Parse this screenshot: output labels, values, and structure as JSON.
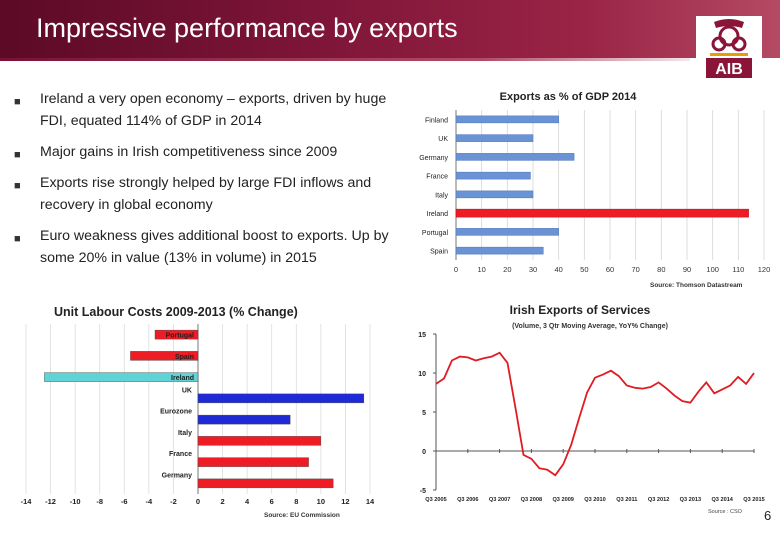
{
  "slide": {
    "title": "Impressive performance by exports",
    "page_number": "6",
    "logo_text": "AIB",
    "bullets": [
      "Ireland a very open economy – exports, driven by huge FDI, equated 114% of GDP in 2014",
      "Major gains in Irish competitiveness since 2009",
      "Exports rise strongly helped by large FDI inflows and recovery in global economy",
      "Euro weakness gives additional boost to exports. Up by some 20% in value (13% in volume) in 2015"
    ]
  },
  "colors": {
    "header": "#7d1538",
    "bar_blue": "#6a93d6",
    "bar_red": "#ee1c25",
    "ulc_blue": "#1f2ad6",
    "ulc_cyan": "#5fd3d6",
    "line_red": "#e11b22"
  },
  "chart_data": [
    {
      "type": "bar",
      "orientation": "horizontal",
      "title": "Exports as % of GDP 2014",
      "categories": [
        "Finland",
        "UK",
        "Germany",
        "France",
        "Italy",
        "Ireland",
        "Portugal",
        "Spain"
      ],
      "values": [
        40,
        30,
        46,
        29,
        30,
        114,
        40,
        34
      ],
      "highlight": "Ireland",
      "xlim": [
        0,
        120
      ],
      "xticks": [
        0,
        10,
        20,
        30,
        40,
        50,
        60,
        70,
        80,
        90,
        100,
        110,
        120
      ],
      "source": "Source: Thomson Datastream",
      "grid": true
    },
    {
      "type": "bar",
      "orientation": "horizontal",
      "title": "Unit Labour Costs 2009-2013 (% Change)",
      "categories": [
        "Portugal",
        "Spain",
        "Ireland",
        "UK",
        "Eurozone",
        "Italy",
        "France",
        "Germany"
      ],
      "values": [
        -3.5,
        -5.5,
        -12.5,
        13.5,
        7.5,
        10,
        9,
        11
      ],
      "colors": [
        "red",
        "red",
        "cyan",
        "blue",
        "blue",
        "red",
        "red",
        "red"
      ],
      "xlim": [
        -14,
        14
      ],
      "xticks": [
        -14,
        -12,
        -10,
        -8,
        -6,
        -4,
        -2,
        0,
        2,
        4,
        6,
        8,
        10,
        12,
        14
      ],
      "source": "Source: EU Commission",
      "grid": true
    },
    {
      "type": "line",
      "title": "Irish Exports of Services",
      "subtitle": "(Volume, 3 Qtr Moving Average, YoY% Change)",
      "xticks": [
        "Q3 2005",
        "Q3 2006",
        "Q3 2007",
        "Q3 2008",
        "Q3 2009",
        "Q3 2010",
        "Q3 2011",
        "Q3 2012",
        "Q3 2013",
        "Q3 2014",
        "Q3 2015"
      ],
      "ylim": [
        -5,
        15
      ],
      "yticks": [
        15,
        10,
        5,
        0,
        -5
      ],
      "series": [
        {
          "values": [
            8.6,
            9.3,
            11.6,
            12.1,
            12.0,
            11.6,
            11.9,
            12.1,
            12.6,
            11.3,
            5.5,
            -0.5,
            -1.0,
            -2.2,
            -2.4,
            -3.1,
            -1.7,
            0.8,
            4.2,
            7.5,
            9.4,
            9.8,
            10.3,
            9.6,
            8.4,
            8.1,
            8.0,
            8.2,
            8.8,
            8.0,
            7.1,
            6.4,
            6.2,
            7.6,
            8.8,
            7.4,
            7.9,
            8.4,
            9.5,
            8.6,
            10.0
          ]
        }
      ],
      "source": "Source : CSO",
      "grid": false
    }
  ]
}
